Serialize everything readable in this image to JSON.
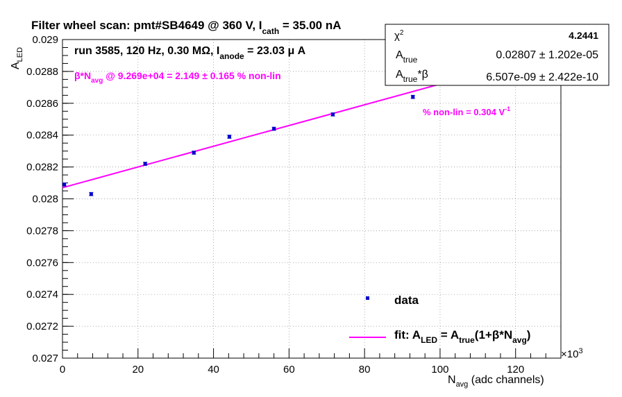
{
  "chart_data": {
    "type": "scatter",
    "title_parts": [
      "Filter wheel scan: pmt#SB4649 @   360 V, I",
      "cath",
      " = 35.00 nA"
    ],
    "subtitle_parts": [
      "run 3585, 120 Hz, 0.30 MΩ, I",
      "anode",
      " = 23.03 μ A"
    ],
    "annotation_nonlin_parts": [
      "β*N",
      "avg",
      " @ 9.269e+04 = 2.149 ± 0.165 % non-lin"
    ],
    "annotation_pct_parts": [
      "% non-lin = 0.304 V",
      "-1"
    ],
    "xlabel_parts": [
      "N",
      "avg",
      " (adc channels)"
    ],
    "ylabel_parts": [
      "A",
      "LED"
    ],
    "x_multiplier_parts": [
      "×10",
      "3"
    ],
    "xlim": [
      0,
      132
    ],
    "ylim": [
      0.027,
      0.029
    ],
    "x_ticks": [
      0,
      20,
      40,
      60,
      80,
      100,
      120
    ],
    "y_ticks": [
      0.027,
      0.0272,
      0.0274,
      0.0276,
      0.0278,
      0.028,
      0.0282,
      0.0284,
      0.0286,
      0.0288,
      0.029
    ],
    "x_tick_labels": [
      "0",
      "20",
      "40",
      "60",
      "80",
      "100",
      "120"
    ],
    "y_tick_labels": [
      "0.027",
      "0.0272",
      "0.0274",
      "0.0276",
      "0.0278",
      "0.028",
      "0.0282",
      "0.0284",
      "0.0286",
      "0.0288",
      "0.029"
    ],
    "grid": true,
    "series": [
      {
        "name": "data",
        "x": [
          0.5,
          7.6,
          21.9,
          34.8,
          44.2,
          56.0,
          71.6,
          92.8
        ],
        "y": [
          0.02809,
          0.02803,
          0.02822,
          0.02829,
          0.02839,
          0.02844,
          0.02853,
          0.02864
        ],
        "yerr": [
          1e-05,
          1e-05,
          1e-05,
          1e-05,
          1e-05,
          1e-05,
          1e-05,
          1e-05
        ],
        "color": "#0000cc"
      }
    ],
    "fit": {
      "name_parts": [
        "fit: A",
        "LED",
        " = A",
        "true",
        "(1+β*N",
        "avg",
        ")"
      ],
      "x_range": [
        0,
        100
      ],
      "intercept": 0.02807,
      "slope_per_1000": 6.507e-06,
      "color": "#ff00ff"
    },
    "legend_data_label": "data",
    "stats": {
      "chi2_label": "χ",
      "chi2_sup": "2",
      "chi2_value": "4.2441",
      "atrue_label": "A",
      "atrue_sub": "true",
      "atrue_value": "0.02807 ± 1.202e-05",
      "atrueb_label": "A",
      "atrueb_sub": "true",
      "atrueb_suffix": "*β",
      "atrueb_value": "6.507e-09 ± 2.422e-10"
    }
  }
}
